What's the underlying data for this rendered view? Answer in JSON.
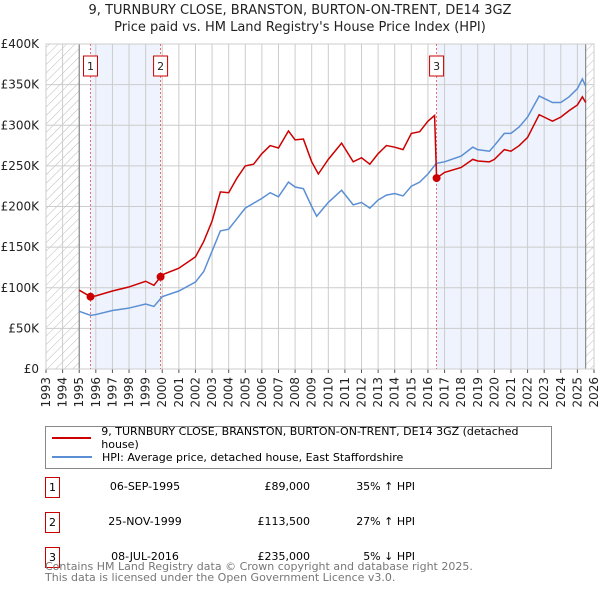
{
  "title_line1": "9, TURNBURY CLOSE, BRANSTON, BURTON-ON-TRENT, DE14 3GZ",
  "title_line2": "Price paid vs. HM Land Registry's House Price Index (HPI)",
  "chart_data": {
    "type": "line",
    "title": "9, TURNBURY CLOSE, BRANSTON, BURTON-ON-TRENT, DE14 3GZ — Price paid vs. HM Land Registry's House Price Index (HPI)",
    "xlim": [
      1993,
      2026
    ],
    "ylim": [
      0,
      400000
    ],
    "x_ticks": [
      "1993",
      "1994",
      "1995",
      "1996",
      "1997",
      "1998",
      "1999",
      "2000",
      "2001",
      "2002",
      "2003",
      "2004",
      "2005",
      "2006",
      "2007",
      "2008",
      "2009",
      "2010",
      "2011",
      "2012",
      "2013",
      "2014",
      "2015",
      "2016",
      "2017",
      "2018",
      "2019",
      "2020",
      "2021",
      "2022",
      "2023",
      "2024",
      "2025",
      "2026"
    ],
    "y_ticks": [
      {
        "v": 0,
        "label": "£0"
      },
      {
        "v": 50000,
        "label": "£50K"
      },
      {
        "v": 100000,
        "label": "£100K"
      },
      {
        "v": 150000,
        "label": "£150K"
      },
      {
        "v": 200000,
        "label": "£200K"
      },
      {
        "v": 250000,
        "label": "£250K"
      },
      {
        "v": 300000,
        "label": "£300K"
      },
      {
        "v": 350000,
        "label": "£350K"
      },
      {
        "v": 400000,
        "label": "£400K"
      }
    ],
    "grid": true,
    "series": [
      {
        "name": "9, TURNBURY CLOSE, BRANSTON, BURTON-ON-TRENT, DE14 3GZ (detached house)",
        "color": "#cc0000",
        "x": [
          1995,
          1995.68,
          1996,
          1997,
          1998,
          1999,
          1999.5,
          1999.9,
          2000,
          2001,
          2002,
          2002.5,
          2003,
          2003.5,
          2004,
          2004.5,
          2005,
          2005.5,
          2006,
          2006.5,
          2007,
          2007.6,
          2008,
          2008.5,
          2009,
          2009.4,
          2010,
          2010.8,
          2011.5,
          2012,
          2012.5,
          2013,
          2013.5,
          2014,
          2014.5,
          2015,
          2015.5,
          2016,
          2016.4,
          2016.52,
          2017,
          2018,
          2018.7,
          2019,
          2019.7,
          2020,
          2020.6,
          2021,
          2021.5,
          2022,
          2022.7,
          2023,
          2023.5,
          2024,
          2024.5,
          2025,
          2025.3,
          2025.5
        ],
        "y": [
          97000,
          89000,
          90000,
          96000,
          101000,
          108000,
          103000,
          113500,
          116000,
          124000,
          138000,
          157000,
          182000,
          218000,
          217000,
          235000,
          250000,
          252000,
          265000,
          275000,
          272000,
          293000,
          282000,
          283000,
          255000,
          240000,
          258000,
          278000,
          255000,
          260000,
          252000,
          265000,
          275000,
          273000,
          270000,
          290000,
          292000,
          305000,
          312000,
          235000,
          242000,
          248000,
          258000,
          256000,
          255000,
          258000,
          270000,
          268000,
          275000,
          285000,
          313000,
          310000,
          305000,
          310000,
          318000,
          325000,
          335000,
          328000
        ]
      },
      {
        "name": "HPI: Average price, detached house, East Staffordshire",
        "color": "#5b8fd4",
        "x": [
          1995,
          1995.68,
          1996,
          1997,
          1998,
          1999,
          1999.5,
          2000,
          2001,
          2002,
          2002.5,
          2003,
          2003.5,
          2004,
          2004.5,
          2005,
          2006,
          2006.5,
          2007,
          2007.6,
          2008,
          2008.5,
          2009,
          2009.3,
          2010,
          2010.8,
          2011.5,
          2012,
          2012.5,
          2013,
          2013.5,
          2014,
          2014.5,
          2015,
          2015.5,
          2016,
          2016.5,
          2017,
          2018,
          2018.7,
          2019,
          2019.7,
          2020,
          2020.6,
          2021,
          2021.5,
          2022,
          2022.7,
          2023,
          2023.5,
          2024,
          2024.5,
          2025,
          2025.3,
          2025.5
        ],
        "y": [
          71000,
          66000,
          67000,
          72000,
          75000,
          80000,
          77000,
          89000,
          96000,
          107000,
          120000,
          145000,
          170000,
          172000,
          185000,
          198000,
          210000,
          217000,
          212000,
          230000,
          224000,
          222000,
          200000,
          188000,
          205000,
          220000,
          202000,
          205000,
          198000,
          208000,
          214000,
          216000,
          213000,
          225000,
          230000,
          240000,
          253000,
          255000,
          262000,
          273000,
          270000,
          268000,
          275000,
          290000,
          290000,
          298000,
          310000,
          336000,
          333000,
          328000,
          328000,
          335000,
          345000,
          357000,
          348000
        ]
      }
    ],
    "sales": [
      {
        "label": "1",
        "x": 1995.68,
        "y": 89000,
        "date": "06-SEP-1995",
        "price": "£89,000",
        "hpi": "35% ↑ HPI"
      },
      {
        "label": "2",
        "x": 1999.9,
        "y": 113500,
        "date": "25-NOV-1999",
        "price": "£113,500",
        "hpi": "27% ↑ HPI"
      },
      {
        "label": "3",
        "x": 2016.52,
        "y": 235000,
        "date": "08-JUL-2016",
        "price": "£235,000",
        "hpi": "5% ↓ HPI"
      }
    ],
    "shaded_ranges": [
      [
        1995.68,
        1999.9
      ],
      [
        2016.52,
        2025.5
      ]
    ],
    "hatched_ranges": [
      [
        1993,
        1995
      ],
      [
        2025.5,
        2026
      ]
    ]
  },
  "legend": {
    "red": "9, TURNBURY CLOSE, BRANSTON, BURTON-ON-TRENT, DE14 3GZ (detached house)",
    "blue": "HPI: Average price, detached house, East Staffordshire"
  },
  "footer": {
    "line1": "Contains HM Land Registry data © Crown copyright and database right 2025.",
    "line2": "This data is licensed under the Open Government Licence v3.0."
  }
}
